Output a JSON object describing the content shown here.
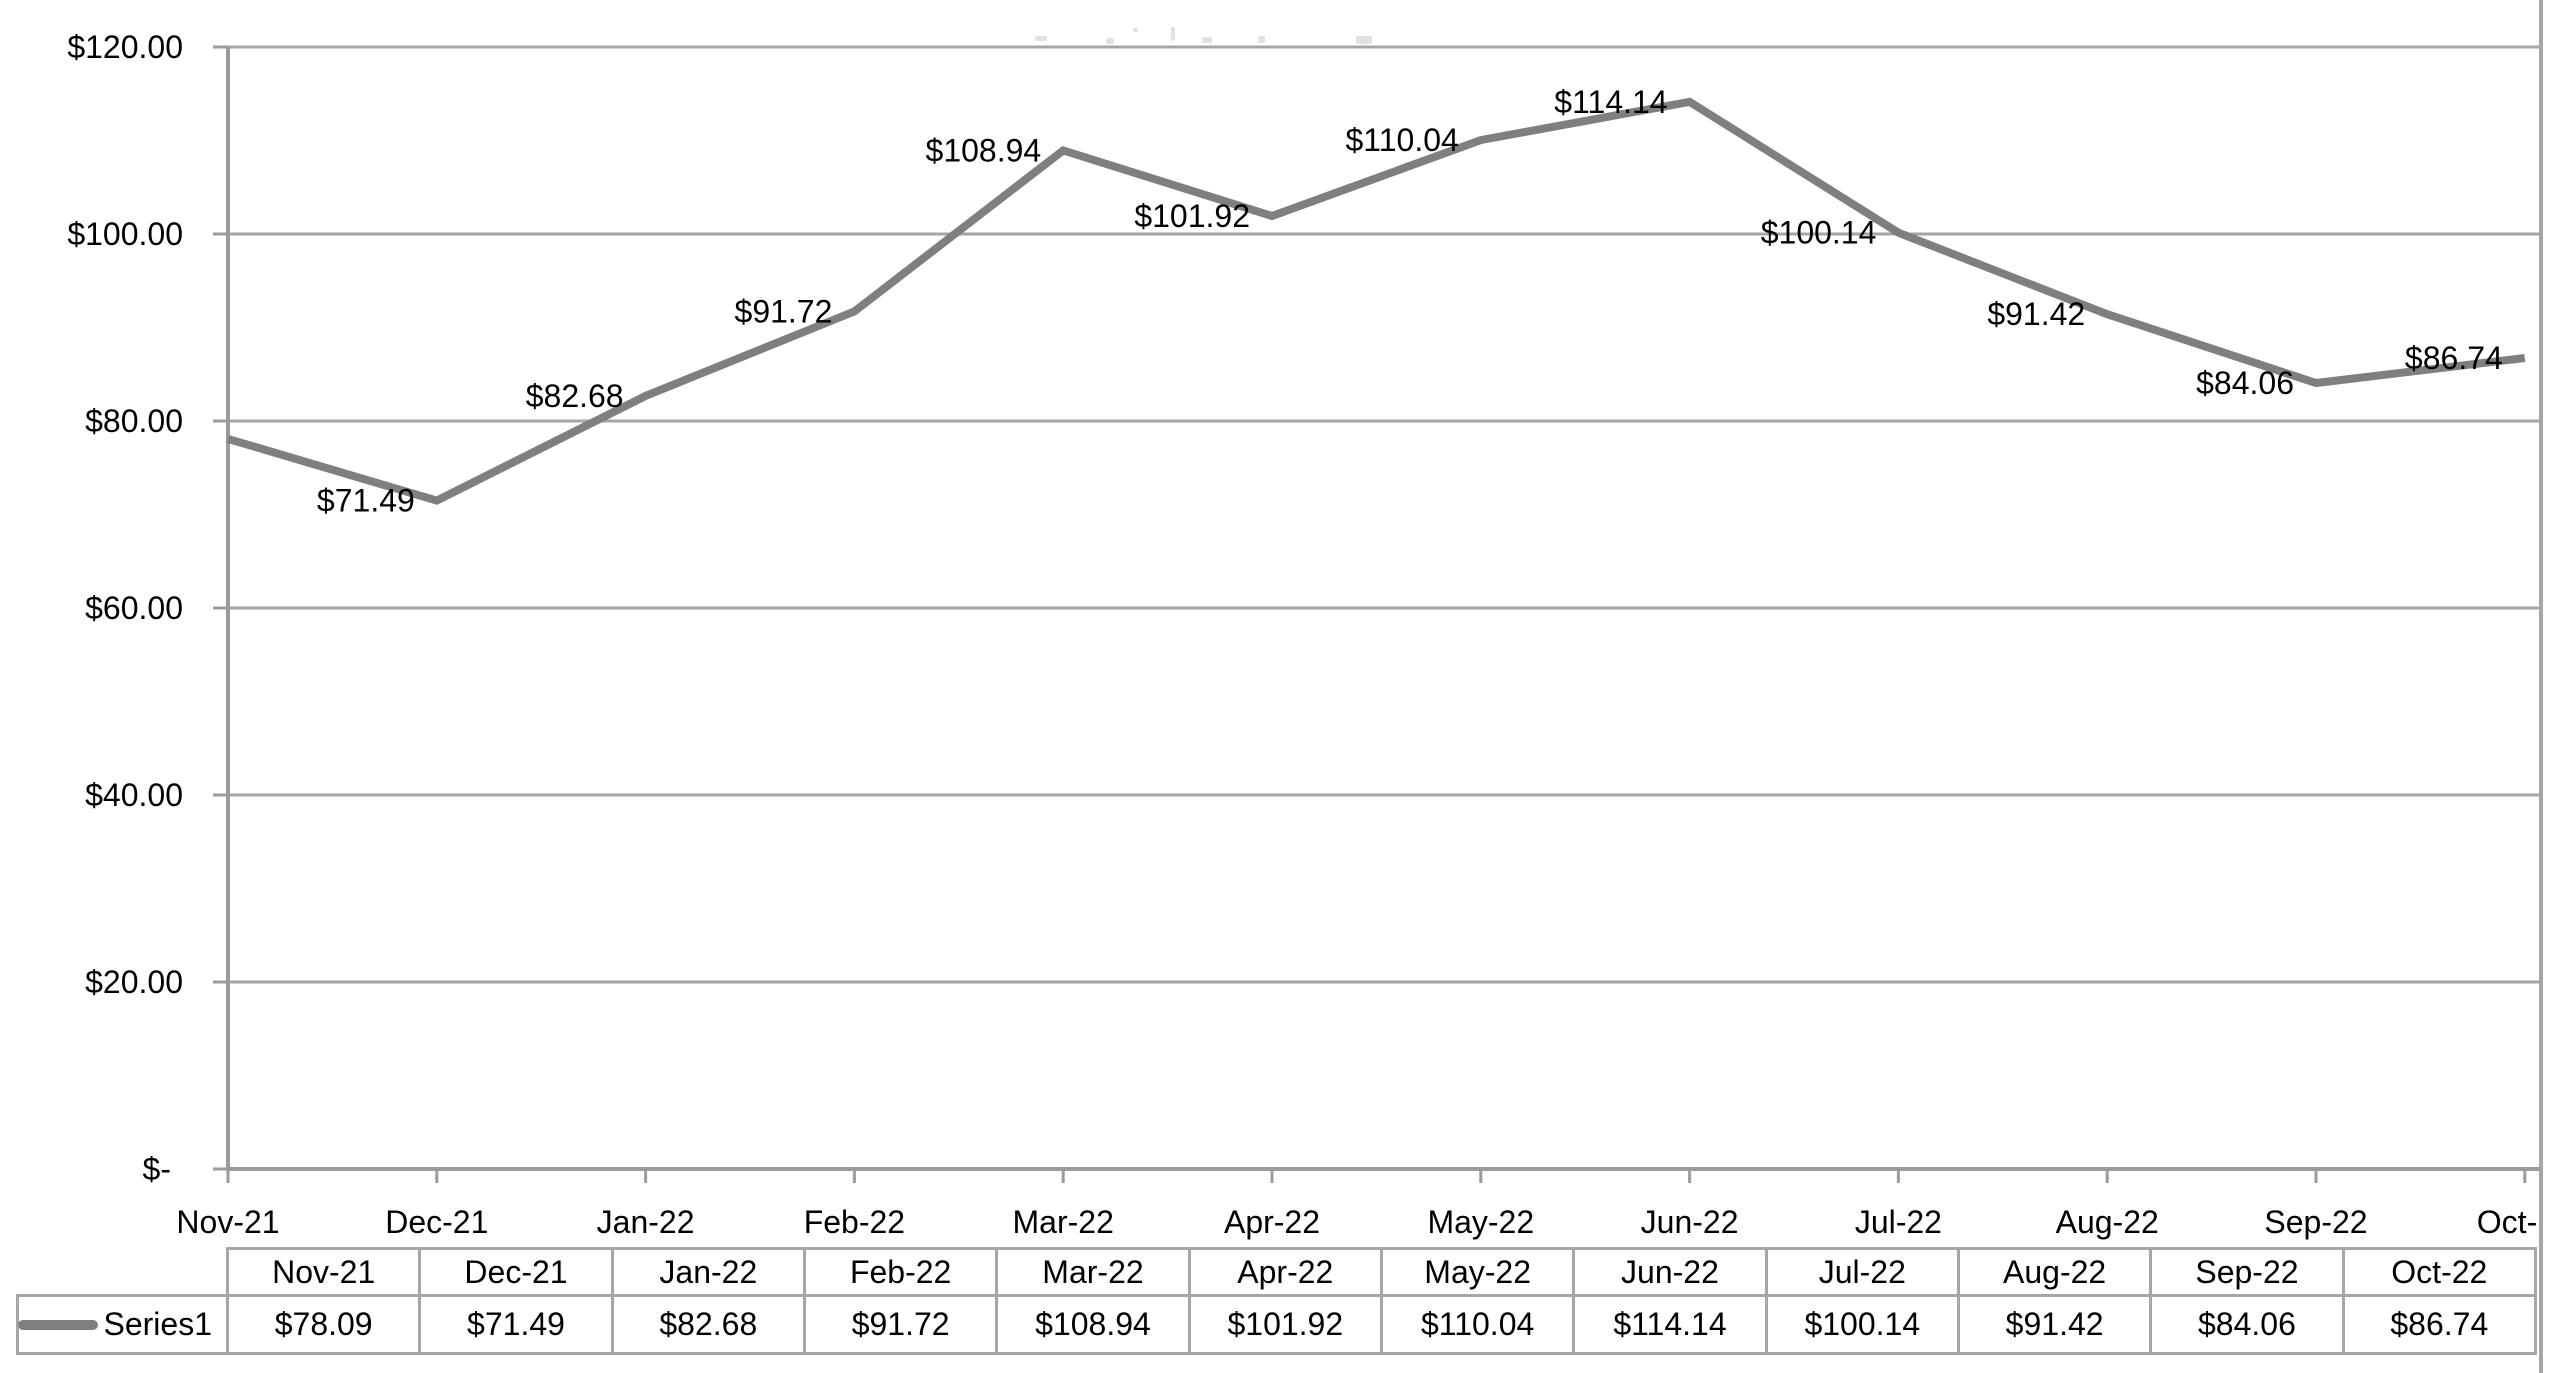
{
  "chart_data": {
    "type": "line",
    "title": "",
    "categories": [
      "Nov-21",
      "Dec-21",
      "Jan-22",
      "Feb-22",
      "Mar-22",
      "Apr-22",
      "May-22",
      "Jun-22",
      "Jul-22",
      "Aug-22",
      "Sep-22",
      "Oct-22"
    ],
    "series": [
      {
        "name": "Series1",
        "values": [
          78.09,
          71.49,
          82.68,
          91.72,
          108.94,
          101.92,
          110.04,
          114.14,
          100.14,
          91.42,
          84.06,
          86.74
        ]
      }
    ],
    "point_labels": [
      "",
      "$71.49",
      "$82.68",
      "$91.72",
      "$108.94",
      "$101.92",
      "$110.04",
      "$114.14",
      "$100.14",
      "$91.42",
      "$84.06",
      "$86.74"
    ],
    "y_axis": {
      "min": 0,
      "max": 120,
      "step": 20,
      "tick_labels": [
        "$-",
        "$20.00",
        "$40.00",
        "$60.00",
        "$80.00",
        "$100.00",
        "$120.00"
      ]
    },
    "xlabel": "",
    "ylabel": "",
    "grid": true,
    "legend_position": "data-table-left",
    "data_table": {
      "legend_label": "Series1",
      "column_headers": [
        "Nov-21",
        "Dec-21",
        "Jan-22",
        "Feb-22",
        "Mar-22",
        "Apr-22",
        "May-22",
        "Jun-22",
        "Jul-22",
        "Aug-22",
        "Sep-22",
        "Oct-22"
      ],
      "row_values": [
        "$78.09",
        "$71.49",
        "$82.68",
        "$91.72",
        "$108.94",
        "$101.92",
        "$110.04",
        "$114.14",
        "$100.14",
        "$91.42",
        "$84.06",
        "$86.74"
      ]
    }
  },
  "colors": {
    "line": "#7f7f7f",
    "gridline": "#a6a6a6",
    "axis": "#9b9b9b",
    "chart_border": "#a6a6a6",
    "table_border": "#a6a6a6",
    "text": "#000000",
    "background": "#ffffff"
  }
}
